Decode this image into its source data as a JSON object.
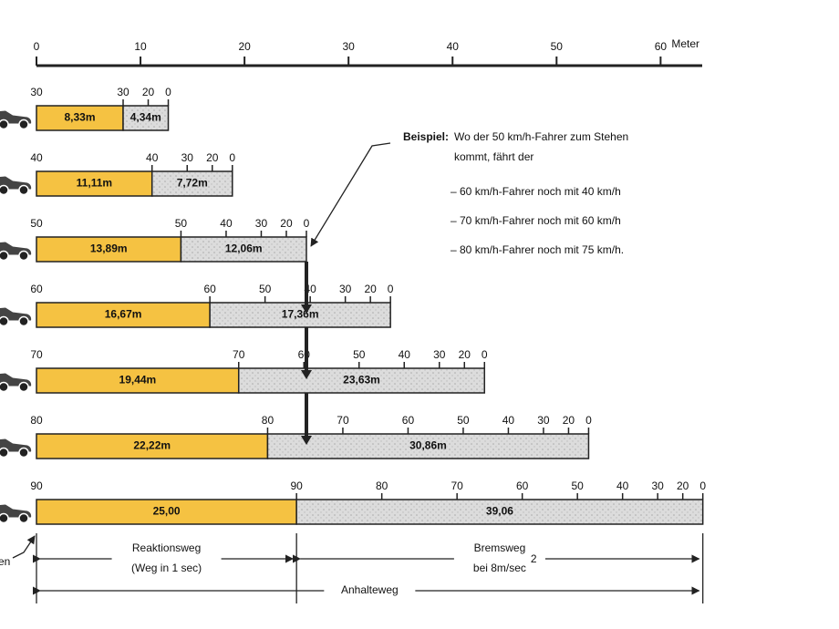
{
  "chart_data": {
    "type": "bar",
    "orientation": "horizontal",
    "stacked": true,
    "xlim": [
      0,
      64
    ],
    "xticks": [
      0,
      10,
      20,
      30,
      40,
      50,
      60
    ],
    "x_unit": "Meter",
    "categories": [
      30,
      40,
      50,
      60,
      70,
      80,
      90
    ],
    "series": [
      {
        "name": "Reaktionsweg",
        "color": "#f5c242",
        "values": [
          8.33,
          11.11,
          13.89,
          16.67,
          19.44,
          22.22,
          25.0
        ],
        "value_labels": [
          "8,33m",
          "11,11m",
          "13,89m",
          "16,67m",
          "19,44m",
          "22,22m",
          "25,00"
        ]
      },
      {
        "name": "Bremsweg",
        "color": "#d9d9d9",
        "values": [
          4.34,
          7.72,
          12.06,
          17.36,
          23.63,
          30.86,
          39.06
        ],
        "value_labels": [
          "4,34m",
          "7,72m",
          "12,06m",
          "17,36m",
          "23,63m",
          "30,86m",
          "39,06"
        ]
      }
    ],
    "brake_ticks": [
      [
        30,
        20,
        0
      ],
      [
        40,
        30,
        20,
        0
      ],
      [
        50,
        40,
        30,
        20,
        0
      ],
      [
        60,
        50,
        40,
        30,
        20,
        0
      ],
      [
        70,
        60,
        50,
        40,
        30,
        20,
        0
      ],
      [
        80,
        70,
        60,
        50,
        40,
        30,
        20,
        0
      ],
      [
        90,
        80,
        70,
        60,
        50,
        40,
        30,
        20,
        0
      ]
    ],
    "example": {
      "label": "Beispiel:",
      "lines": [
        "Wo der 50 km/h-Fahrer zum Stehen",
        "kommt, fährt der",
        "– 60 km/h-Fahrer noch mit 40 km/h",
        "– 70 km/h-Fahrer noch mit 60 km/h",
        "– 80 km/h-Fahrer noch mit 75 km/h."
      ]
    },
    "reaction_note": "(Weg in 1 sec)",
    "braking_note": "bei 8m/sec",
    "braking_note_sup": "2",
    "total_label": "Anhalteweg",
    "cut_label": "en"
  }
}
